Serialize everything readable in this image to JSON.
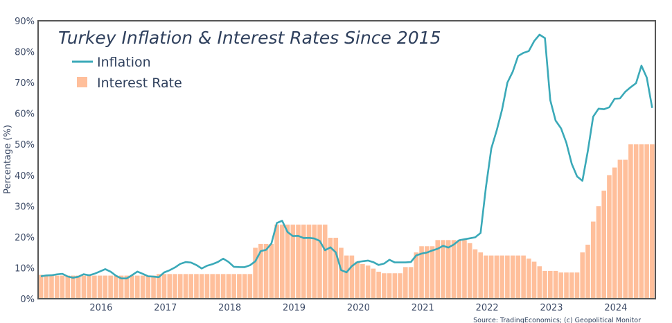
{
  "chart_data": {
    "type": "bar+line",
    "title": "Turkey Inflation & Interest Rates Since 2015",
    "ylabel": "Percentage (%)",
    "xlabel": "",
    "source": "Source: TradingEconomics; (c) Geopolitical Monitor",
    "ylim": [
      0,
      90
    ],
    "y_ticks": [
      "0%",
      "10%",
      "20%",
      "30%",
      "40%",
      "50%",
      "60%",
      "70%",
      "80%",
      "90%"
    ],
    "x_ticks": [
      "2016",
      "2017",
      "2018",
      "2019",
      "2020",
      "2021",
      "2022",
      "2023",
      "2024"
    ],
    "x_range": [
      "2015-01",
      "2024-07"
    ],
    "grid": false,
    "legend_placement": "top-left",
    "colors": {
      "inflation": "#3aa9b8",
      "interest_rate": "#ffbf9b",
      "frame": "#555555"
    },
    "series": [
      {
        "name": "Inflation",
        "type": "line",
        "values": [
          7.24,
          7.55,
          7.61,
          7.91,
          8.09,
          7.2,
          6.81,
          7.14,
          7.95,
          7.58,
          8.1,
          8.81,
          9.58,
          8.78,
          7.46,
          6.57,
          6.58,
          7.64,
          8.79,
          8.05,
          7.28,
          7.16,
          7.0,
          8.53,
          9.22,
          10.13,
          11.29,
          11.87,
          11.72,
          10.9,
          9.79,
          10.68,
          11.2,
          11.9,
          12.98,
          11.92,
          10.35,
          10.26,
          10.23,
          10.85,
          12.15,
          15.39,
          15.85,
          17.9,
          24.52,
          25.24,
          21.62,
          20.3,
          20.35,
          19.67,
          19.71,
          19.5,
          18.71,
          15.72,
          16.65,
          15.01,
          9.26,
          8.55,
          10.56,
          11.84,
          12.15,
          12.37,
          11.86,
          10.94,
          11.39,
          12.62,
          11.76,
          11.77,
          11.75,
          11.89,
          14.03,
          14.6,
          14.97,
          15.61,
          16.19,
          17.14,
          16.59,
          17.53,
          18.95,
          19.25,
          19.58,
          19.89,
          21.31,
          36.08,
          48.69,
          54.44,
          61.14,
          69.97,
          73.5,
          78.62,
          79.6,
          80.21,
          83.45,
          85.51,
          84.39,
          64.27,
          57.68,
          55.18,
          50.51,
          43.68,
          39.59,
          38.21,
          47.83,
          58.94,
          61.53,
          61.36,
          61.98,
          64.77,
          64.86,
          67.07,
          68.5,
          69.8,
          75.45,
          71.6,
          61.78
        ]
      },
      {
        "name": "Interest Rate",
        "type": "bar",
        "values": [
          7.75,
          7.5,
          7.5,
          7.5,
          7.5,
          7.5,
          7.5,
          7.5,
          7.5,
          7.5,
          7.5,
          7.5,
          7.5,
          7.5,
          7.5,
          7.5,
          7.5,
          7.5,
          7.5,
          7.5,
          7.5,
          7.5,
          8,
          8,
          8,
          8,
          8,
          8,
          8,
          8,
          8,
          8,
          8,
          8,
          8,
          8,
          8,
          8,
          8,
          8,
          16.5,
          17.75,
          17.75,
          17.75,
          24,
          24,
          24,
          24,
          24,
          24,
          24,
          24,
          24,
          24,
          19.75,
          19.75,
          16.5,
          14,
          14,
          12,
          11.25,
          10.75,
          9.75,
          8.75,
          8.25,
          8.25,
          8.25,
          8.25,
          10.25,
          10.25,
          15,
          17,
          17,
          17,
          19,
          19,
          19,
          19,
          19,
          19,
          18,
          16,
          15,
          14,
          14,
          14,
          14,
          14,
          14,
          14,
          14,
          13,
          12,
          10.5,
          9,
          9,
          9,
          8.5,
          8.5,
          8.5,
          8.5,
          15,
          17.5,
          25,
          30,
          35,
          40,
          42.5,
          45,
          45,
          50,
          50,
          50,
          50,
          50
        ]
      }
    ]
  }
}
